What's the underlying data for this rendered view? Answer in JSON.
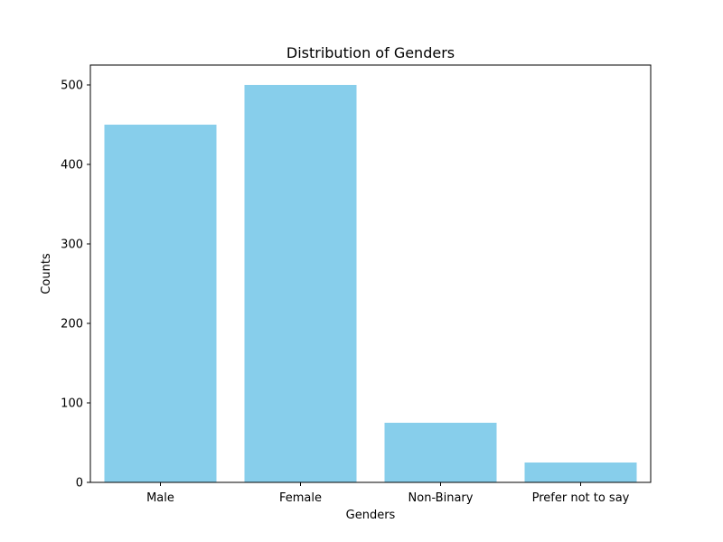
{
  "chart_data": {
    "type": "bar",
    "title": "Distribution of Genders",
    "xlabel": "Genders",
    "ylabel": "Counts",
    "categories": [
      "Male",
      "Female",
      "Non-Binary",
      "Prefer not to say"
    ],
    "values": [
      450,
      500,
      75,
      25
    ],
    "ylim": [
      0,
      525
    ],
    "yticks": [
      0,
      100,
      200,
      300,
      400,
      500
    ],
    "bar_color": "#87ceeb",
    "grid": false,
    "legend": "none"
  }
}
